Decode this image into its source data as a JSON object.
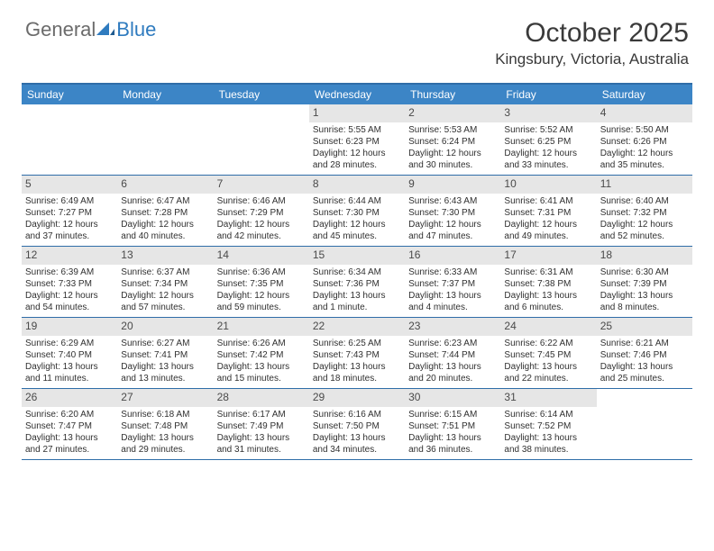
{
  "logo": {
    "part1": "General",
    "part2": "Blue"
  },
  "title": "October 2025",
  "location": "Kingsbury, Victoria, Australia",
  "colors": {
    "header_bar": "#3c85c6",
    "header_border": "#2f6da8",
    "daynum_bg": "#e6e6e6",
    "text": "#303030"
  },
  "fonts": {
    "title_size": 30,
    "location_size": 17,
    "dow_size": 12,
    "daynum_size": 12,
    "body_size": 10
  },
  "dow": [
    "Sunday",
    "Monday",
    "Tuesday",
    "Wednesday",
    "Thursday",
    "Friday",
    "Saturday"
  ],
  "weeks": [
    [
      null,
      null,
      null,
      {
        "n": "1",
        "sr": "Sunrise: 5:55 AM",
        "ss": "Sunset: 6:23 PM",
        "d1": "Daylight: 12 hours",
        "d2": "and 28 minutes."
      },
      {
        "n": "2",
        "sr": "Sunrise: 5:53 AM",
        "ss": "Sunset: 6:24 PM",
        "d1": "Daylight: 12 hours",
        "d2": "and 30 minutes."
      },
      {
        "n": "3",
        "sr": "Sunrise: 5:52 AM",
        "ss": "Sunset: 6:25 PM",
        "d1": "Daylight: 12 hours",
        "d2": "and 33 minutes."
      },
      {
        "n": "4",
        "sr": "Sunrise: 5:50 AM",
        "ss": "Sunset: 6:26 PM",
        "d1": "Daylight: 12 hours",
        "d2": "and 35 minutes."
      }
    ],
    [
      {
        "n": "5",
        "sr": "Sunrise: 6:49 AM",
        "ss": "Sunset: 7:27 PM",
        "d1": "Daylight: 12 hours",
        "d2": "and 37 minutes."
      },
      {
        "n": "6",
        "sr": "Sunrise: 6:47 AM",
        "ss": "Sunset: 7:28 PM",
        "d1": "Daylight: 12 hours",
        "d2": "and 40 minutes."
      },
      {
        "n": "7",
        "sr": "Sunrise: 6:46 AM",
        "ss": "Sunset: 7:29 PM",
        "d1": "Daylight: 12 hours",
        "d2": "and 42 minutes."
      },
      {
        "n": "8",
        "sr": "Sunrise: 6:44 AM",
        "ss": "Sunset: 7:30 PM",
        "d1": "Daylight: 12 hours",
        "d2": "and 45 minutes."
      },
      {
        "n": "9",
        "sr": "Sunrise: 6:43 AM",
        "ss": "Sunset: 7:30 PM",
        "d1": "Daylight: 12 hours",
        "d2": "and 47 minutes."
      },
      {
        "n": "10",
        "sr": "Sunrise: 6:41 AM",
        "ss": "Sunset: 7:31 PM",
        "d1": "Daylight: 12 hours",
        "d2": "and 49 minutes."
      },
      {
        "n": "11",
        "sr": "Sunrise: 6:40 AM",
        "ss": "Sunset: 7:32 PM",
        "d1": "Daylight: 12 hours",
        "d2": "and 52 minutes."
      }
    ],
    [
      {
        "n": "12",
        "sr": "Sunrise: 6:39 AM",
        "ss": "Sunset: 7:33 PM",
        "d1": "Daylight: 12 hours",
        "d2": "and 54 minutes."
      },
      {
        "n": "13",
        "sr": "Sunrise: 6:37 AM",
        "ss": "Sunset: 7:34 PM",
        "d1": "Daylight: 12 hours",
        "d2": "and 57 minutes."
      },
      {
        "n": "14",
        "sr": "Sunrise: 6:36 AM",
        "ss": "Sunset: 7:35 PM",
        "d1": "Daylight: 12 hours",
        "d2": "and 59 minutes."
      },
      {
        "n": "15",
        "sr": "Sunrise: 6:34 AM",
        "ss": "Sunset: 7:36 PM",
        "d1": "Daylight: 13 hours",
        "d2": "and 1 minute."
      },
      {
        "n": "16",
        "sr": "Sunrise: 6:33 AM",
        "ss": "Sunset: 7:37 PM",
        "d1": "Daylight: 13 hours",
        "d2": "and 4 minutes."
      },
      {
        "n": "17",
        "sr": "Sunrise: 6:31 AM",
        "ss": "Sunset: 7:38 PM",
        "d1": "Daylight: 13 hours",
        "d2": "and 6 minutes."
      },
      {
        "n": "18",
        "sr": "Sunrise: 6:30 AM",
        "ss": "Sunset: 7:39 PM",
        "d1": "Daylight: 13 hours",
        "d2": "and 8 minutes."
      }
    ],
    [
      {
        "n": "19",
        "sr": "Sunrise: 6:29 AM",
        "ss": "Sunset: 7:40 PM",
        "d1": "Daylight: 13 hours",
        "d2": "and 11 minutes."
      },
      {
        "n": "20",
        "sr": "Sunrise: 6:27 AM",
        "ss": "Sunset: 7:41 PM",
        "d1": "Daylight: 13 hours",
        "d2": "and 13 minutes."
      },
      {
        "n": "21",
        "sr": "Sunrise: 6:26 AM",
        "ss": "Sunset: 7:42 PM",
        "d1": "Daylight: 13 hours",
        "d2": "and 15 minutes."
      },
      {
        "n": "22",
        "sr": "Sunrise: 6:25 AM",
        "ss": "Sunset: 7:43 PM",
        "d1": "Daylight: 13 hours",
        "d2": "and 18 minutes."
      },
      {
        "n": "23",
        "sr": "Sunrise: 6:23 AM",
        "ss": "Sunset: 7:44 PM",
        "d1": "Daylight: 13 hours",
        "d2": "and 20 minutes."
      },
      {
        "n": "24",
        "sr": "Sunrise: 6:22 AM",
        "ss": "Sunset: 7:45 PM",
        "d1": "Daylight: 13 hours",
        "d2": "and 22 minutes."
      },
      {
        "n": "25",
        "sr": "Sunrise: 6:21 AM",
        "ss": "Sunset: 7:46 PM",
        "d1": "Daylight: 13 hours",
        "d2": "and 25 minutes."
      }
    ],
    [
      {
        "n": "26",
        "sr": "Sunrise: 6:20 AM",
        "ss": "Sunset: 7:47 PM",
        "d1": "Daylight: 13 hours",
        "d2": "and 27 minutes."
      },
      {
        "n": "27",
        "sr": "Sunrise: 6:18 AM",
        "ss": "Sunset: 7:48 PM",
        "d1": "Daylight: 13 hours",
        "d2": "and 29 minutes."
      },
      {
        "n": "28",
        "sr": "Sunrise: 6:17 AM",
        "ss": "Sunset: 7:49 PM",
        "d1": "Daylight: 13 hours",
        "d2": "and 31 minutes."
      },
      {
        "n": "29",
        "sr": "Sunrise: 6:16 AM",
        "ss": "Sunset: 7:50 PM",
        "d1": "Daylight: 13 hours",
        "d2": "and 34 minutes."
      },
      {
        "n": "30",
        "sr": "Sunrise: 6:15 AM",
        "ss": "Sunset: 7:51 PM",
        "d1": "Daylight: 13 hours",
        "d2": "and 36 minutes."
      },
      {
        "n": "31",
        "sr": "Sunrise: 6:14 AM",
        "ss": "Sunset: 7:52 PM",
        "d1": "Daylight: 13 hours",
        "d2": "and 38 minutes."
      },
      null
    ]
  ]
}
